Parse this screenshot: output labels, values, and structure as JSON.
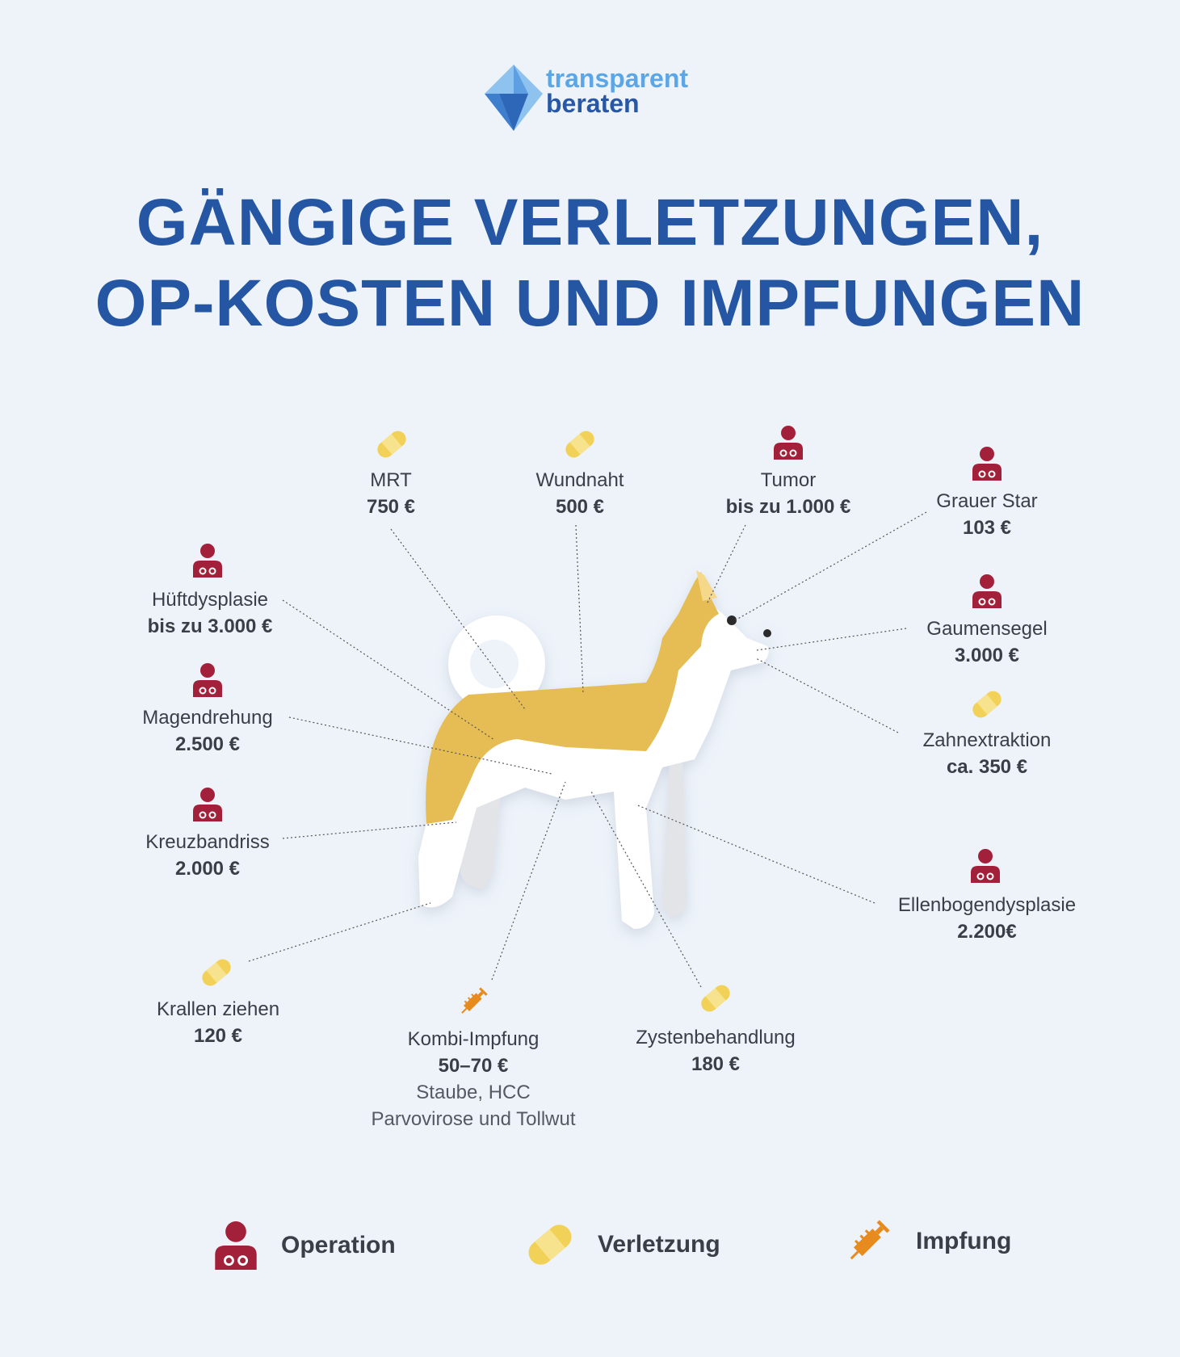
{
  "brand": {
    "line1": "transparent",
    "line2": "beraten"
  },
  "title": {
    "line1": "GÄNGIGE VERLETZUNGEN,",
    "line2": "OP-KOSTEN UND IMPFUNGEN"
  },
  "colors": {
    "operation": "#a3203a",
    "verletzung": "#f2d158",
    "impfung": "#e88b1e",
    "title": "#2456a3",
    "dog_fur": "#e6bc55"
  },
  "items": [
    {
      "name": "MRT",
      "price": "750 €",
      "type": "verletzung"
    },
    {
      "name": "Wundnaht",
      "price": "500 €",
      "type": "verletzung"
    },
    {
      "name": "Tumor",
      "price": "bis zu 1.000 €",
      "type": "operation"
    },
    {
      "name": "Grauer Star",
      "price": "103 €",
      "type": "operation"
    },
    {
      "name": "Hüftdysplasie",
      "price": "bis zu 3.000 €",
      "type": "operation"
    },
    {
      "name": "Gaumensegel",
      "price": "3.000 €",
      "type": "operation"
    },
    {
      "name": "Magendrehung",
      "price": "2.500 €",
      "type": "operation"
    },
    {
      "name": "Zahnextraktion",
      "price": "ca. 350 €",
      "type": "verletzung"
    },
    {
      "name": "Kreuzbandriss",
      "price": "2.000 €",
      "type": "operation"
    },
    {
      "name": "Ellenbogendysplasie",
      "price": "2.200€",
      "type": "operation"
    },
    {
      "name": "Krallen ziehen",
      "price": "120 €",
      "type": "verletzung"
    },
    {
      "name": "Kombi-Impfung",
      "price": "50–70 €",
      "sub1": "Staube, HCC",
      "sub2": "Parvovirose und Tollwut",
      "type": "impfung"
    },
    {
      "name": "Zystenbehandlung",
      "price": "180 €",
      "type": "verletzung"
    }
  ],
  "legend": {
    "operation": "Operation",
    "verletzung": "Verletzung",
    "impfung": "Impfung"
  }
}
